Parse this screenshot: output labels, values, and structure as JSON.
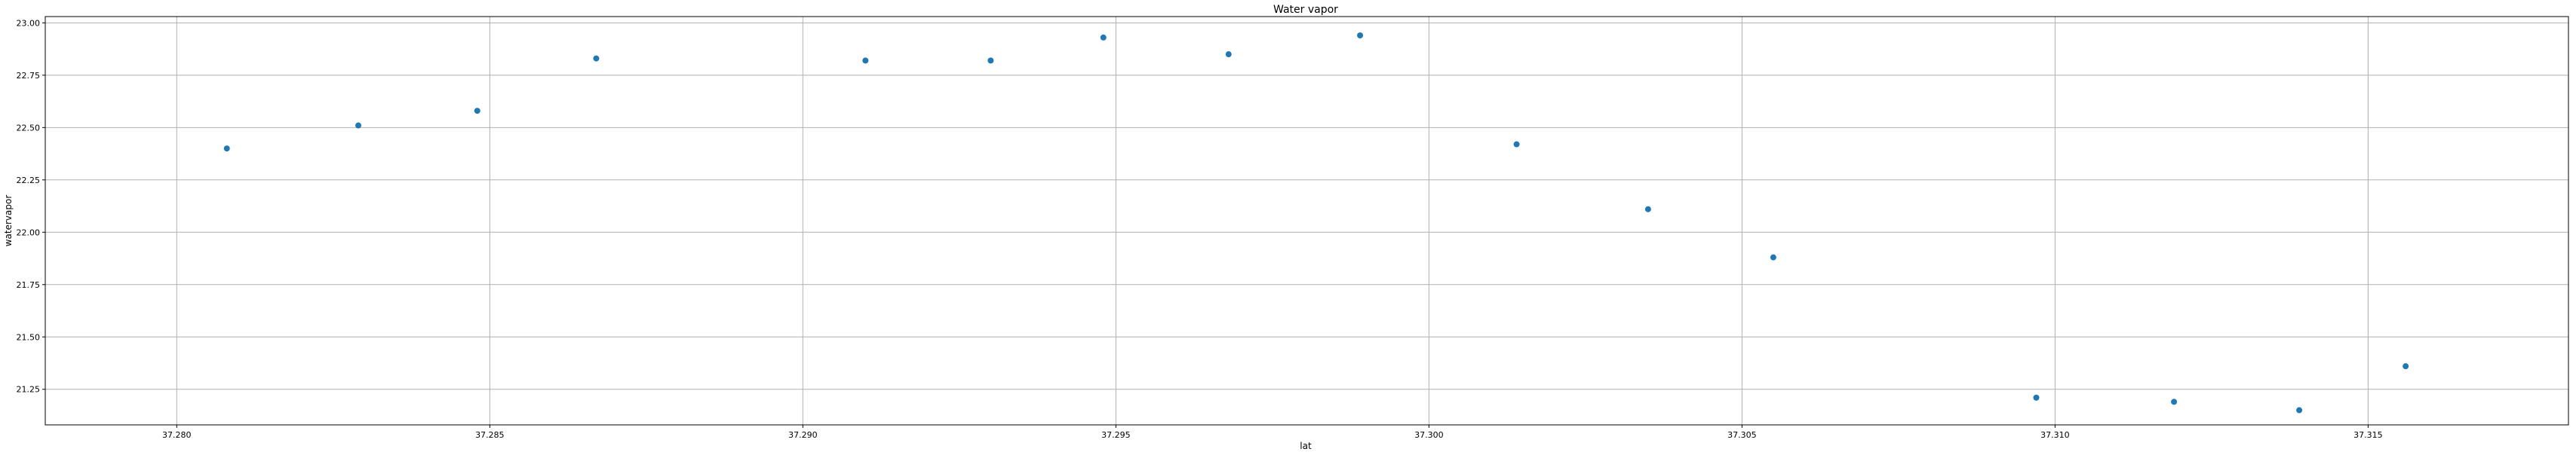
{
  "chart_data": {
    "type": "scatter",
    "title": "Water vapor",
    "xlabel": "lat",
    "ylabel": "watervapor",
    "xlim": [
      37.2779,
      37.3182
    ],
    "ylim": [
      21.08,
      23.03
    ],
    "grid": true,
    "color": "#1f77b4",
    "x_ticks": [
      "37.280",
      "37.285",
      "37.290",
      "37.295",
      "37.300",
      "37.305",
      "37.310",
      "37.315"
    ],
    "y_ticks": [
      "21.25",
      "21.50",
      "21.75",
      "22.00",
      "22.25",
      "22.50",
      "22.75",
      "23.00"
    ],
    "points": [
      {
        "x": 37.2808,
        "y": 22.4
      },
      {
        "x": 37.2829,
        "y": 22.51
      },
      {
        "x": 37.2848,
        "y": 22.58
      },
      {
        "x": 37.2867,
        "y": 22.83
      },
      {
        "x": 37.291,
        "y": 22.82
      },
      {
        "x": 37.293,
        "y": 22.82
      },
      {
        "x": 37.2948,
        "y": 22.93
      },
      {
        "x": 37.2968,
        "y": 22.85
      },
      {
        "x": 37.2989,
        "y": 22.94
      },
      {
        "x": 37.3014,
        "y": 22.42
      },
      {
        "x": 37.3035,
        "y": 22.11
      },
      {
        "x": 37.3055,
        "y": 21.88
      },
      {
        "x": 37.3097,
        "y": 21.21
      },
      {
        "x": 37.3119,
        "y": 21.19
      },
      {
        "x": 37.3139,
        "y": 21.15
      },
      {
        "x": 37.3156,
        "y": 21.36
      }
    ]
  }
}
